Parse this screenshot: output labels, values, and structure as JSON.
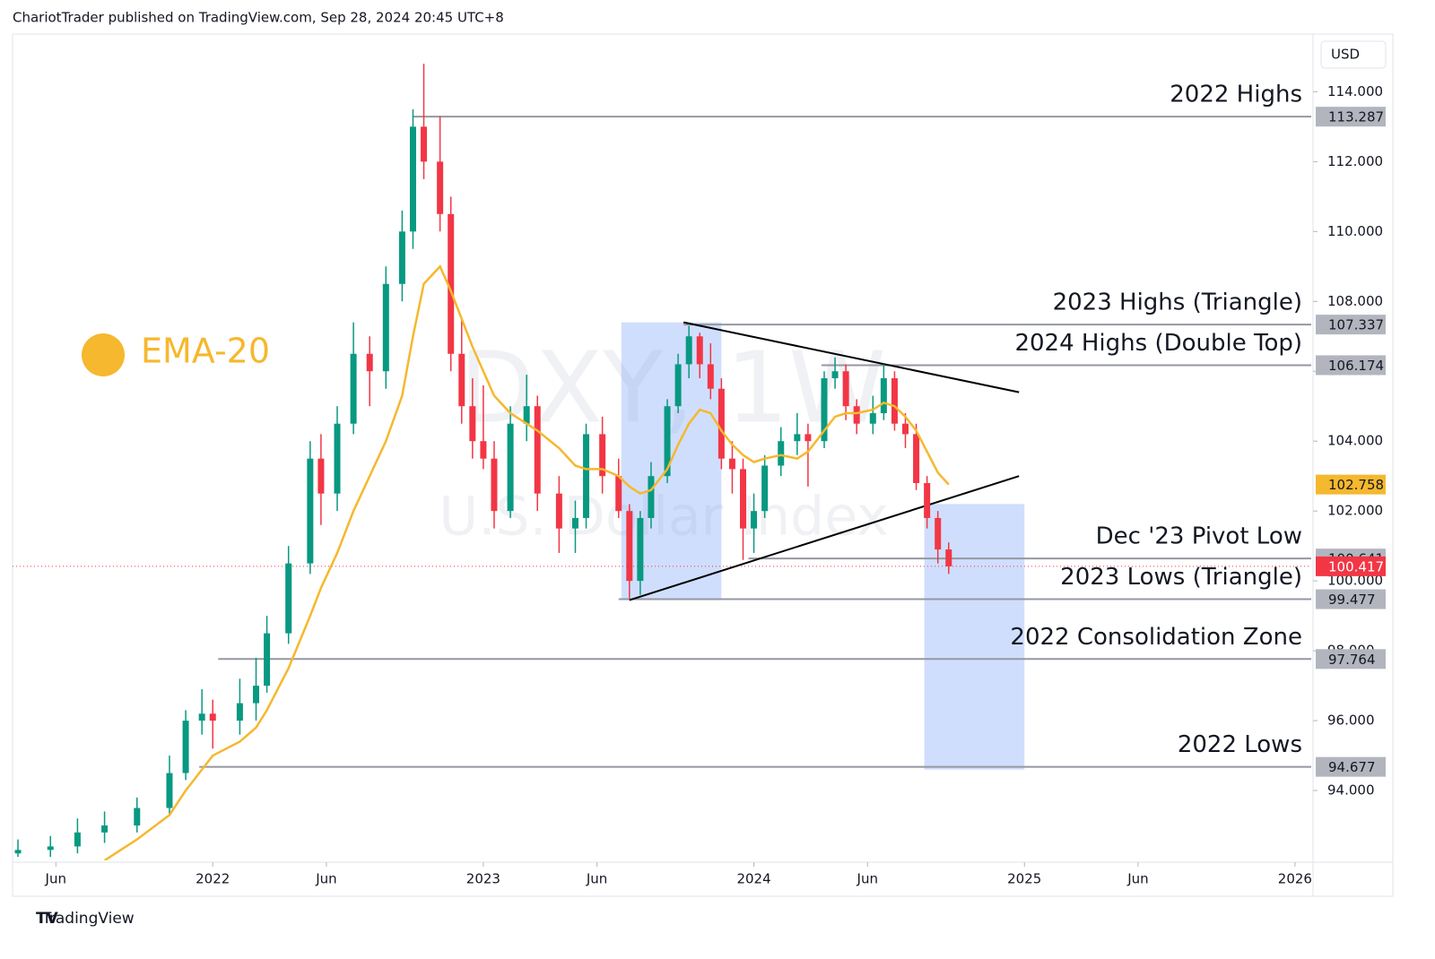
{
  "header": {
    "text": "ChariotTrader published on TradingView.com, Sep 28, 2024 20:45 UTC+8"
  },
  "footer": {
    "brand": "TradingView"
  },
  "currency": "USD",
  "watermark": {
    "symbol": "DXY, 1W",
    "name": "U.S. Dollar Index"
  },
  "chart_data": {
    "type": "candlestick",
    "up_color": "#089981",
    "down_color": "#f23645",
    "xlim": [
      2021.26,
      2026.06
    ],
    "ylim": [
      92.0,
      115.6
    ],
    "xticks": [
      {
        "value": 2021.42,
        "label": "Jun"
      },
      2022,
      {
        "value": 2022.42,
        "label": "Jun"
      },
      2023,
      {
        "value": 2023.42,
        "label": "Jun"
      },
      2024,
      {
        "value": 2024.42,
        "label": "Jun"
      },
      2025,
      {
        "value": 2025.42,
        "label": "Jun"
      },
      2026
    ],
    "yticks": [
      {
        "value": 94,
        "label": "94.000"
      },
      {
        "value": 96,
        "label": "96.000"
      },
      {
        "value": 98,
        "label": "98.000"
      },
      {
        "value": 100,
        "label": "100.000"
      },
      {
        "value": 102,
        "label": "102.000"
      },
      {
        "value": 104,
        "label": "104.000"
      },
      {
        "value": 106,
        "label": "106.000"
      },
      {
        "value": 108,
        "label": "108.000"
      },
      {
        "value": 110,
        "label": "110.000"
      },
      {
        "value": 112,
        "label": "112.000"
      },
      {
        "value": 114,
        "label": "114.000"
      }
    ],
    "x": [
      2021.28,
      2021.4,
      2021.5,
      2021.6,
      2021.72,
      2021.84,
      2021.9,
      2021.96,
      2022.0,
      2022.1,
      2022.16,
      2022.2,
      2022.28,
      2022.36,
      2022.4,
      2022.46,
      2022.52,
      2022.58,
      2022.64,
      2022.7,
      2022.74,
      2022.78,
      2022.84,
      2022.88,
      2022.92,
      2022.96,
      2023.0,
      2023.04,
      2023.1,
      2023.16,
      2023.2,
      2023.28,
      2023.34,
      2023.38,
      2023.44,
      2023.5,
      2023.54,
      2023.58,
      2023.62,
      2023.68,
      2023.72,
      2023.76,
      2023.8,
      2023.84,
      2023.88,
      2023.92,
      2023.96,
      2024.0,
      2024.04,
      2024.1,
      2024.16,
      2024.2,
      2024.26,
      2024.3,
      2024.34,
      2024.38,
      2024.44,
      2024.48,
      2024.52,
      2024.56,
      2024.6,
      2024.64,
      2024.68,
      2024.72
    ],
    "candles": [
      [
        92.2,
        92.6,
        92.1,
        92.3
      ],
      [
        92.3,
        92.7,
        92.1,
        92.4
      ],
      [
        92.4,
        93.2,
        92.2,
        92.8
      ],
      [
        92.8,
        93.4,
        92.5,
        93.0
      ],
      [
        93.0,
        93.8,
        92.8,
        93.5
      ],
      [
        93.5,
        95.0,
        93.3,
        94.5
      ],
      [
        94.5,
        96.3,
        94.3,
        96.0
      ],
      [
        96.0,
        96.9,
        95.6,
        96.2
      ],
      [
        96.2,
        96.6,
        95.2,
        96.0
      ],
      [
        96.0,
        97.2,
        95.6,
        96.5
      ],
      [
        96.5,
        97.8,
        96.0,
        97.0
      ],
      [
        97.0,
        99.0,
        96.8,
        98.5
      ],
      [
        98.5,
        101.0,
        98.2,
        100.5
      ],
      [
        100.5,
        104.0,
        100.2,
        103.5
      ],
      [
        103.5,
        104.2,
        101.6,
        102.5
      ],
      [
        102.5,
        105.0,
        102.0,
        104.5
      ],
      [
        104.5,
        107.4,
        104.2,
        106.5
      ],
      [
        106.5,
        107.0,
        105.0,
        106.0
      ],
      [
        106.0,
        109.0,
        105.5,
        108.5
      ],
      [
        108.5,
        110.6,
        108.0,
        110.0
      ],
      [
        110.0,
        113.5,
        109.5,
        113.0
      ],
      [
        113.0,
        114.8,
        111.5,
        112.0
      ],
      [
        112.0,
        113.3,
        110.0,
        110.5
      ],
      [
        110.5,
        111.0,
        106.0,
        106.5
      ],
      [
        106.5,
        107.5,
        104.5,
        105.0
      ],
      [
        105.0,
        105.8,
        103.5,
        104.0
      ],
      [
        104.0,
        105.6,
        103.2,
        103.5
      ],
      [
        103.5,
        104.0,
        101.5,
        102.0
      ],
      [
        102.0,
        105.0,
        101.8,
        104.5
      ],
      [
        104.5,
        105.9,
        104.0,
        105.0
      ],
      [
        105.0,
        105.3,
        102.0,
        102.5
      ],
      [
        102.5,
        103.0,
        100.8,
        101.5
      ],
      [
        101.5,
        102.3,
        100.8,
        101.8
      ],
      [
        101.8,
        104.5,
        101.5,
        104.2
      ],
      [
        104.2,
        104.7,
        102.5,
        103.0
      ],
      [
        103.0,
        103.5,
        101.8,
        102.0
      ],
      [
        102.0,
        102.2,
        99.5,
        100.0
      ],
      [
        100.0,
        102.0,
        99.6,
        101.8
      ],
      [
        101.8,
        103.4,
        101.5,
        103.0
      ],
      [
        103.0,
        105.2,
        102.8,
        105.0
      ],
      [
        105.0,
        106.5,
        104.8,
        106.2
      ],
      [
        106.2,
        107.3,
        105.8,
        107.0
      ],
      [
        107.0,
        107.1,
        105.8,
        106.2
      ],
      [
        106.2,
        106.8,
        105.2,
        105.5
      ],
      [
        105.5,
        105.8,
        103.2,
        103.5
      ],
      [
        103.5,
        104.0,
        102.5,
        103.2
      ],
      [
        103.2,
        103.5,
        100.6,
        101.5
      ],
      [
        101.5,
        102.5,
        100.8,
        102.0
      ],
      [
        102.0,
        103.6,
        101.8,
        103.3
      ],
      [
        103.3,
        104.4,
        103.0,
        104.0
      ],
      [
        104.0,
        104.8,
        103.6,
        104.2
      ],
      [
        104.2,
        104.5,
        102.7,
        104.0
      ],
      [
        104.0,
        106.0,
        103.8,
        105.8
      ],
      [
        105.8,
        106.4,
        105.5,
        106.0
      ],
      [
        106.0,
        106.2,
        104.6,
        105.0
      ],
      [
        105.0,
        105.2,
        104.2,
        104.5
      ],
      [
        104.5,
        105.3,
        104.2,
        104.8
      ],
      [
        104.8,
        106.2,
        104.6,
        105.8
      ],
      [
        105.8,
        106.0,
        104.3,
        104.5
      ],
      [
        104.5,
        104.8,
        103.8,
        104.2
      ],
      [
        104.2,
        104.5,
        102.6,
        102.8
      ],
      [
        102.8,
        103.0,
        101.5,
        101.8
      ],
      [
        101.8,
        102.0,
        100.5,
        100.9
      ],
      [
        100.9,
        101.1,
        100.2,
        100.417
      ]
    ],
    "series": [
      {
        "name": "EMA-20",
        "color": "#f5b82e",
        "values": [
          null,
          null,
          null,
          92.0,
          92.6,
          93.3,
          94.0,
          94.6,
          95.0,
          95.4,
          95.8,
          96.3,
          97.5,
          99.0,
          99.8,
          100.8,
          102.0,
          103.0,
          104.0,
          105.3,
          107.0,
          108.5,
          109.0,
          108.3,
          107.5,
          106.7,
          106.0,
          105.3,
          104.8,
          104.5,
          104.3,
          103.8,
          103.3,
          103.2,
          103.2,
          103.0,
          102.7,
          102.5,
          102.6,
          103.2,
          103.9,
          104.5,
          104.9,
          104.8,
          104.3,
          103.9,
          103.6,
          103.4,
          103.5,
          103.6,
          103.5,
          103.7,
          104.3,
          104.7,
          104.8,
          104.8,
          104.9,
          105.1,
          105.0,
          104.7,
          104.3,
          103.7,
          103.1,
          102.758
        ]
      }
    ],
    "levels": [
      {
        "label": "2022 Highs",
        "value": 113.287,
        "from": 2022.74
      },
      {
        "label": "2023 Highs (Triangle)",
        "value": 107.337,
        "from": 2023.74
      },
      {
        "label": "2024 Highs (Double Top)",
        "value": 106.174,
        "from": 2024.25
      },
      {
        "label": "Dec '23 Pivot Low",
        "value": 100.641,
        "from": 2023.98
      },
      {
        "label": "2023 Lows (Triangle)",
        "value": 99.477,
        "from": 2023.5
      },
      {
        "label": "2022 Consolidation Zone",
        "value": 97.764,
        "from": 2022.02
      },
      {
        "label": "2022 Lows",
        "value": 94.677,
        "from": 2021.95
      }
    ],
    "trendlines": [
      {
        "x": [
          2023.74,
          2024.98
        ],
        "y": [
          107.4,
          105.4
        ]
      },
      {
        "x": [
          2023.54,
          2024.98
        ],
        "y": [
          99.45,
          103.0
        ]
      }
    ],
    "boxes": [
      {
        "x": [
          2023.51,
          2023.88
        ],
        "y": [
          99.45,
          107.4
        ]
      },
      {
        "x": [
          2024.63,
          2025.0
        ],
        "y": [
          94.6,
          102.2
        ]
      }
    ]
  }
}
